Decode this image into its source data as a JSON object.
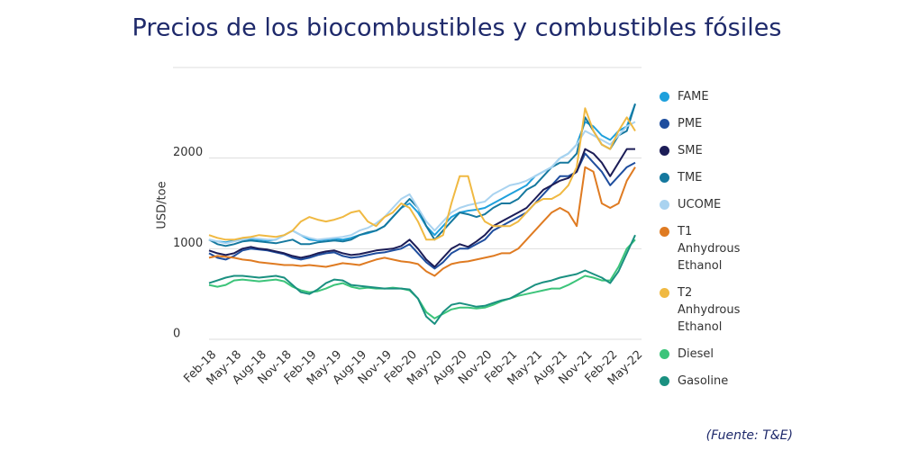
{
  "chart_data": {
    "type": "line",
    "title": "Precios de los biocombustibles y combustibles fósiles",
    "y_label": "USD/toe",
    "source": "(Fuente: T&E)",
    "categories": [
      "Feb-18",
      null,
      null,
      "May-18",
      null,
      null,
      "Aug-18",
      null,
      null,
      "Nov-18",
      null,
      null,
      "Feb-19",
      null,
      null,
      "May-19",
      null,
      null,
      "Aug-19",
      null,
      null,
      "Nov-19",
      null,
      null,
      "Feb-20",
      null,
      null,
      "May-20",
      null,
      null,
      "Aug-20",
      null,
      null,
      "Nov-20",
      null,
      null,
      "Feb-21",
      null,
      null,
      "May-21",
      null,
      null,
      "Aug-21",
      null,
      null,
      "Nov-21",
      null,
      null,
      "Feb-22",
      null,
      null,
      "May-22"
    ],
    "ylim": [
      0,
      3000
    ],
    "yticks": [
      0,
      1000,
      2000
    ],
    "grid": true,
    "series": [
      {
        "name": "FAME",
        "color": "#1ea0dc",
        "values": [
          1100,
          1080,
          1070,
          1090,
          1100,
          1110,
          1100,
          1090,
          1100,
          1150,
          1200,
          1150,
          1100,
          1090,
          1100,
          1110,
          1100,
          1120,
          1150,
          1170,
          1200,
          1250,
          1350,
          1450,
          1500,
          1400,
          1250,
          1150,
          1250,
          1350,
          1400,
          1420,
          1430,
          1450,
          1500,
          1550,
          1600,
          1650,
          1700,
          1800,
          1850,
          1900,
          2000,
          2050,
          2150,
          2400,
          2350,
          2250,
          2200,
          2300,
          2350,
          2600
        ]
      },
      {
        "name": "PME",
        "color": "#1f4e9e",
        "values": [
          950,
          900,
          880,
          920,
          980,
          1000,
          990,
          980,
          960,
          940,
          900,
          880,
          900,
          930,
          950,
          960,
          920,
          900,
          910,
          930,
          950,
          960,
          980,
          1000,
          1050,
          950,
          850,
          780,
          850,
          950,
          1000,
          1000,
          1050,
          1100,
          1200,
          1250,
          1300,
          1350,
          1400,
          1500,
          1600,
          1700,
          1800,
          1800,
          1850,
          2050,
          1950,
          1850,
          1700,
          1800,
          1900,
          1950
        ]
      },
      {
        "name": "SME",
        "color": "#1c1d57",
        "values": [
          980,
          950,
          930,
          950,
          1000,
          1020,
          1000,
          990,
          970,
          950,
          920,
          900,
          920,
          950,
          970,
          980,
          950,
          930,
          940,
          960,
          980,
          990,
          1000,
          1030,
          1100,
          1000,
          880,
          800,
          900,
          1000,
          1050,
          1020,
          1080,
          1150,
          1250,
          1300,
          1350,
          1400,
          1450,
          1550,
          1650,
          1700,
          1750,
          1780,
          1850,
          2100,
          2050,
          1950,
          1800,
          1950,
          2100,
          2100
        ]
      },
      {
        "name": "TME",
        "color": "#15789e",
        "values": [
          1100,
          1050,
          1030,
          1050,
          1080,
          1090,
          1080,
          1070,
          1060,
          1080,
          1100,
          1050,
          1050,
          1070,
          1080,
          1090,
          1080,
          1100,
          1150,
          1180,
          1200,
          1250,
          1350,
          1450,
          1550,
          1450,
          1250,
          1100,
          1200,
          1300,
          1400,
          1380,
          1350,
          1380,
          1450,
          1500,
          1500,
          1550,
          1650,
          1700,
          1800,
          1900,
          1950,
          1950,
          2050,
          2450,
          2300,
          2150,
          2100,
          2250,
          2300,
          2600
        ]
      },
      {
        "name": "UCOME",
        "color": "#a9d3f0",
        "values": [
          1100,
          1080,
          1060,
          1080,
          1100,
          1120,
          1110,
          1100,
          1100,
          1150,
          1200,
          1150,
          1120,
          1100,
          1110,
          1120,
          1130,
          1150,
          1200,
          1230,
          1280,
          1350,
          1450,
          1550,
          1600,
          1450,
          1300,
          1200,
          1300,
          1400,
          1450,
          1480,
          1500,
          1520,
          1600,
          1650,
          1700,
          1720,
          1750,
          1800,
          1850,
          1900,
          2000,
          2050,
          2150,
          2300,
          2250,
          2200,
          2150,
          2250,
          2350,
          2400
        ]
      },
      {
        "name": "T1 Anhydrous Ethanol",
        "color": "#df7b22",
        "values": [
          900,
          920,
          910,
          900,
          880,
          870,
          850,
          840,
          830,
          820,
          820,
          810,
          820,
          810,
          800,
          820,
          840,
          830,
          820,
          850,
          880,
          900,
          880,
          860,
          850,
          830,
          750,
          700,
          780,
          830,
          850,
          860,
          880,
          900,
          920,
          950,
          950,
          1000,
          1100,
          1200,
          1300,
          1400,
          1450,
          1400,
          1250,
          1900,
          1850,
          1500,
          1450,
          1500,
          1750,
          1900
        ]
      },
      {
        "name": "T2 Anhydrous Ethanol",
        "color": "#f0b942",
        "values": [
          1150,
          1120,
          1100,
          1100,
          1120,
          1130,
          1150,
          1140,
          1130,
          1150,
          1200,
          1300,
          1350,
          1320,
          1300,
          1320,
          1350,
          1400,
          1420,
          1300,
          1250,
          1350,
          1400,
          1500,
          1450,
          1300,
          1100,
          1100,
          1150,
          1500,
          1800,
          1800,
          1450,
          1300,
          1250,
          1250,
          1250,
          1300,
          1400,
          1500,
          1550,
          1550,
          1600,
          1700,
          1900,
          2550,
          2300,
          2150,
          2100,
          2300,
          2450,
          2300
        ]
      },
      {
        "name": "Diesel",
        "color": "#3cc47a",
        "values": [
          600,
          580,
          600,
          650,
          660,
          650,
          640,
          650,
          660,
          640,
          580,
          540,
          520,
          530,
          560,
          600,
          620,
          580,
          560,
          570,
          560,
          560,
          570,
          560,
          540,
          450,
          300,
          230,
          280,
          330,
          350,
          350,
          340,
          350,
          380,
          420,
          450,
          480,
          500,
          520,
          540,
          560,
          560,
          600,
          650,
          700,
          680,
          650,
          650,
          800,
          1000,
          1100
        ]
      },
      {
        "name": "Gasoline",
        "color": "#1a9080",
        "values": [
          620,
          650,
          680,
          700,
          700,
          690,
          680,
          690,
          700,
          680,
          600,
          520,
          500,
          550,
          620,
          660,
          650,
          600,
          590,
          580,
          570,
          560,
          560,
          560,
          550,
          450,
          250,
          170,
          300,
          380,
          400,
          380,
          360,
          370,
          400,
          430,
          450,
          500,
          550,
          600,
          630,
          650,
          680,
          700,
          720,
          760,
          720,
          680,
          620,
          750,
          950,
          1150
        ]
      }
    ]
  }
}
